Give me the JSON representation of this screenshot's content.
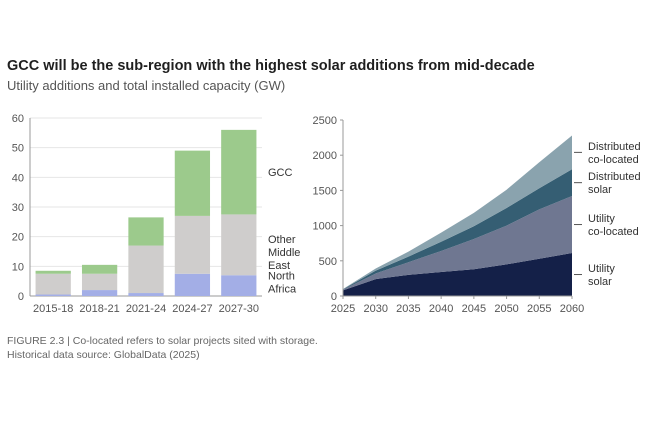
{
  "header": {
    "title": "GCC will be the sub-region with the highest solar additions from mid-decade",
    "subtitle": "Utility additions and total installed capacity (GW)"
  },
  "footer": {
    "caption": "FIGURE 2.3 | Co-located refers to solar projects sited with storage.",
    "source": "Historical data source: GlobalData (2025)"
  },
  "chart_data": [
    {
      "type": "bar",
      "stacked": true,
      "title": "",
      "xlabel": "",
      "ylabel": "",
      "ylim": [
        0,
        60
      ],
      "yticks": [
        0,
        10,
        20,
        30,
        40,
        50,
        60
      ],
      "grid": true,
      "legend": "right, inline labels",
      "categories": [
        "2015-18",
        "2018-21",
        "2021-24",
        "2024-27",
        "2027-30"
      ],
      "series": [
        {
          "name": "North Africa",
          "label_lines": [
            "North",
            "Africa"
          ],
          "color": "#a3aee6",
          "values": [
            0.5,
            2,
            1,
            7.5,
            7
          ]
        },
        {
          "name": "Other Middle East",
          "label_lines": [
            "Other",
            "Middle",
            "East"
          ],
          "color": "#cfcdcc",
          "values": [
            7,
            5.5,
            16,
            19.5,
            20.5
          ]
        },
        {
          "name": "GCC",
          "label_lines": [
            "GCC"
          ],
          "color": "#9cca8c",
          "values": [
            1,
            3,
            9.5,
            22,
            28.5
          ]
        }
      ]
    },
    {
      "type": "area",
      "stacked": true,
      "title": "",
      "xlabel": "",
      "ylabel": "",
      "ylim": [
        0,
        2500
      ],
      "yticks": [
        0,
        500,
        1000,
        1500,
        2000,
        2500
      ],
      "xlim": [
        2025,
        2060
      ],
      "xticks": [
        2025,
        2030,
        2035,
        2040,
        2045,
        2050,
        2055,
        2060
      ],
      "grid": false,
      "legend": "right, inline labels",
      "x": [
        2025,
        2030,
        2035,
        2040,
        2045,
        2050,
        2055,
        2060
      ],
      "series": [
        {
          "name": "Utility solar",
          "label_lines": [
            "Utility",
            "solar"
          ],
          "color": "#142048",
          "values": [
            80,
            240,
            300,
            340,
            380,
            450,
            530,
            610
          ]
        },
        {
          "name": "Utility co-located",
          "label_lines": [
            "Utility",
            "co-located"
          ],
          "color": "#6f7791",
          "values": [
            10,
            80,
            180,
            300,
            430,
            550,
            700,
            810
          ]
        },
        {
          "name": "Distributed solar",
          "label_lines": [
            "Distributed",
            "solar"
          ],
          "color": "#355e73",
          "values": [
            5,
            40,
            80,
            130,
            180,
            250,
            300,
            380
          ]
        },
        {
          "name": "Distributed co-located",
          "label_lines": [
            "Distributed",
            "co-located"
          ],
          "color": "#8aa3ae",
          "values": [
            5,
            30,
            70,
            130,
            190,
            260,
            370,
            480
          ]
        }
      ]
    }
  ]
}
